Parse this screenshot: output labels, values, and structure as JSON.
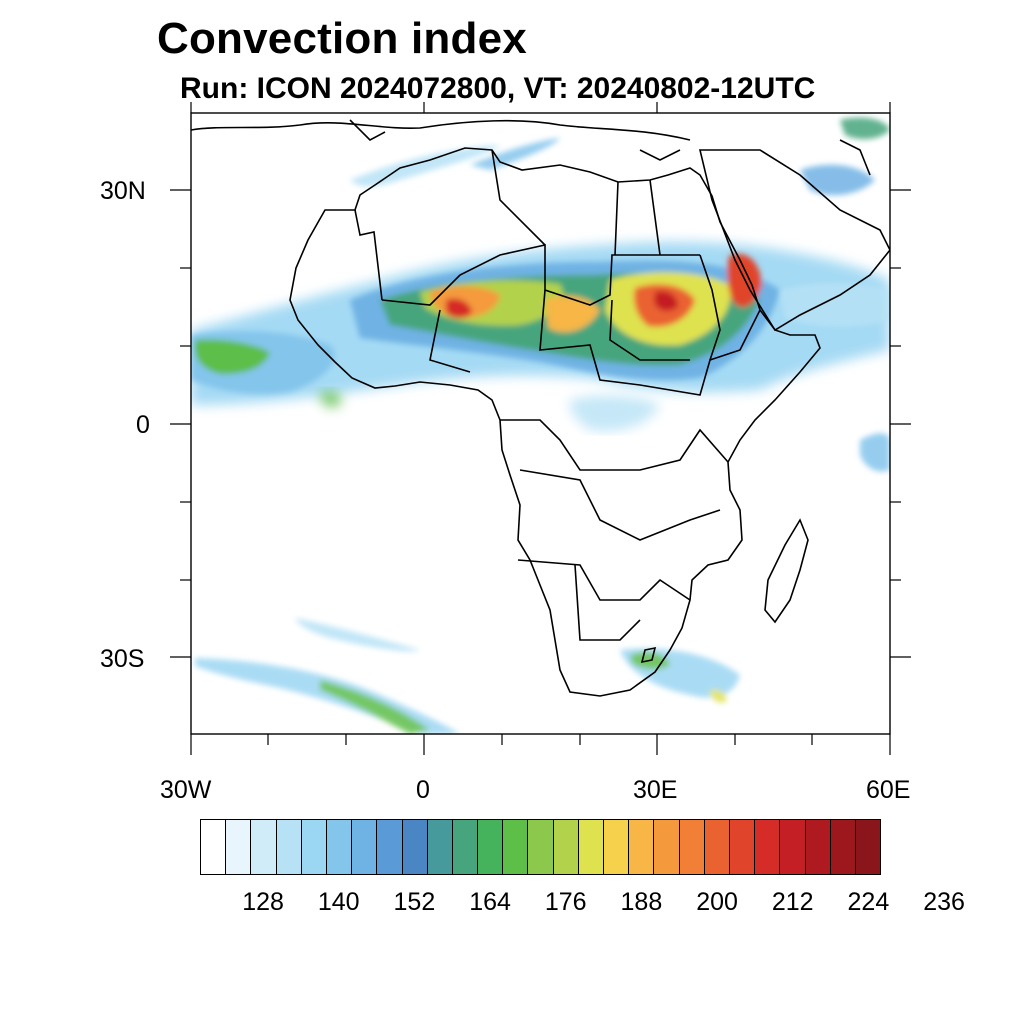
{
  "title": "Convection index",
  "subtitle": "Run: ICON 2024072800,  VT: 20240802-12UTC",
  "map": {
    "region": "Africa",
    "lon_range": [
      -30,
      60
    ],
    "lat_range": [
      -40,
      40
    ],
    "lat_ticks": [
      "30N",
      "0",
      "30S"
    ],
    "lon_ticks": [
      "30W",
      "0",
      "30E",
      "60E"
    ]
  },
  "colorbar": {
    "colors": [
      "#ffffff",
      "#e8f5fc",
      "#d0ecf8",
      "#b7e2f6",
      "#9bd6f3",
      "#84c5ec",
      "#6fb2e4",
      "#5a9ad6",
      "#4b86c4",
      "#479a9b",
      "#46a57d",
      "#44b35c",
      "#5dbe48",
      "#8bc84b",
      "#b3d24c",
      "#dfe24f",
      "#f6d24c",
      "#f7b645",
      "#f59a3c",
      "#f17f35",
      "#ea6230",
      "#e0452b",
      "#d62c27",
      "#c41f24",
      "#ae1a20",
      "#9c181d",
      "#8a161b"
    ],
    "labels": [
      "128",
      "140",
      "152",
      "164",
      "176",
      "188",
      "200",
      "212",
      "224",
      "236"
    ]
  }
}
